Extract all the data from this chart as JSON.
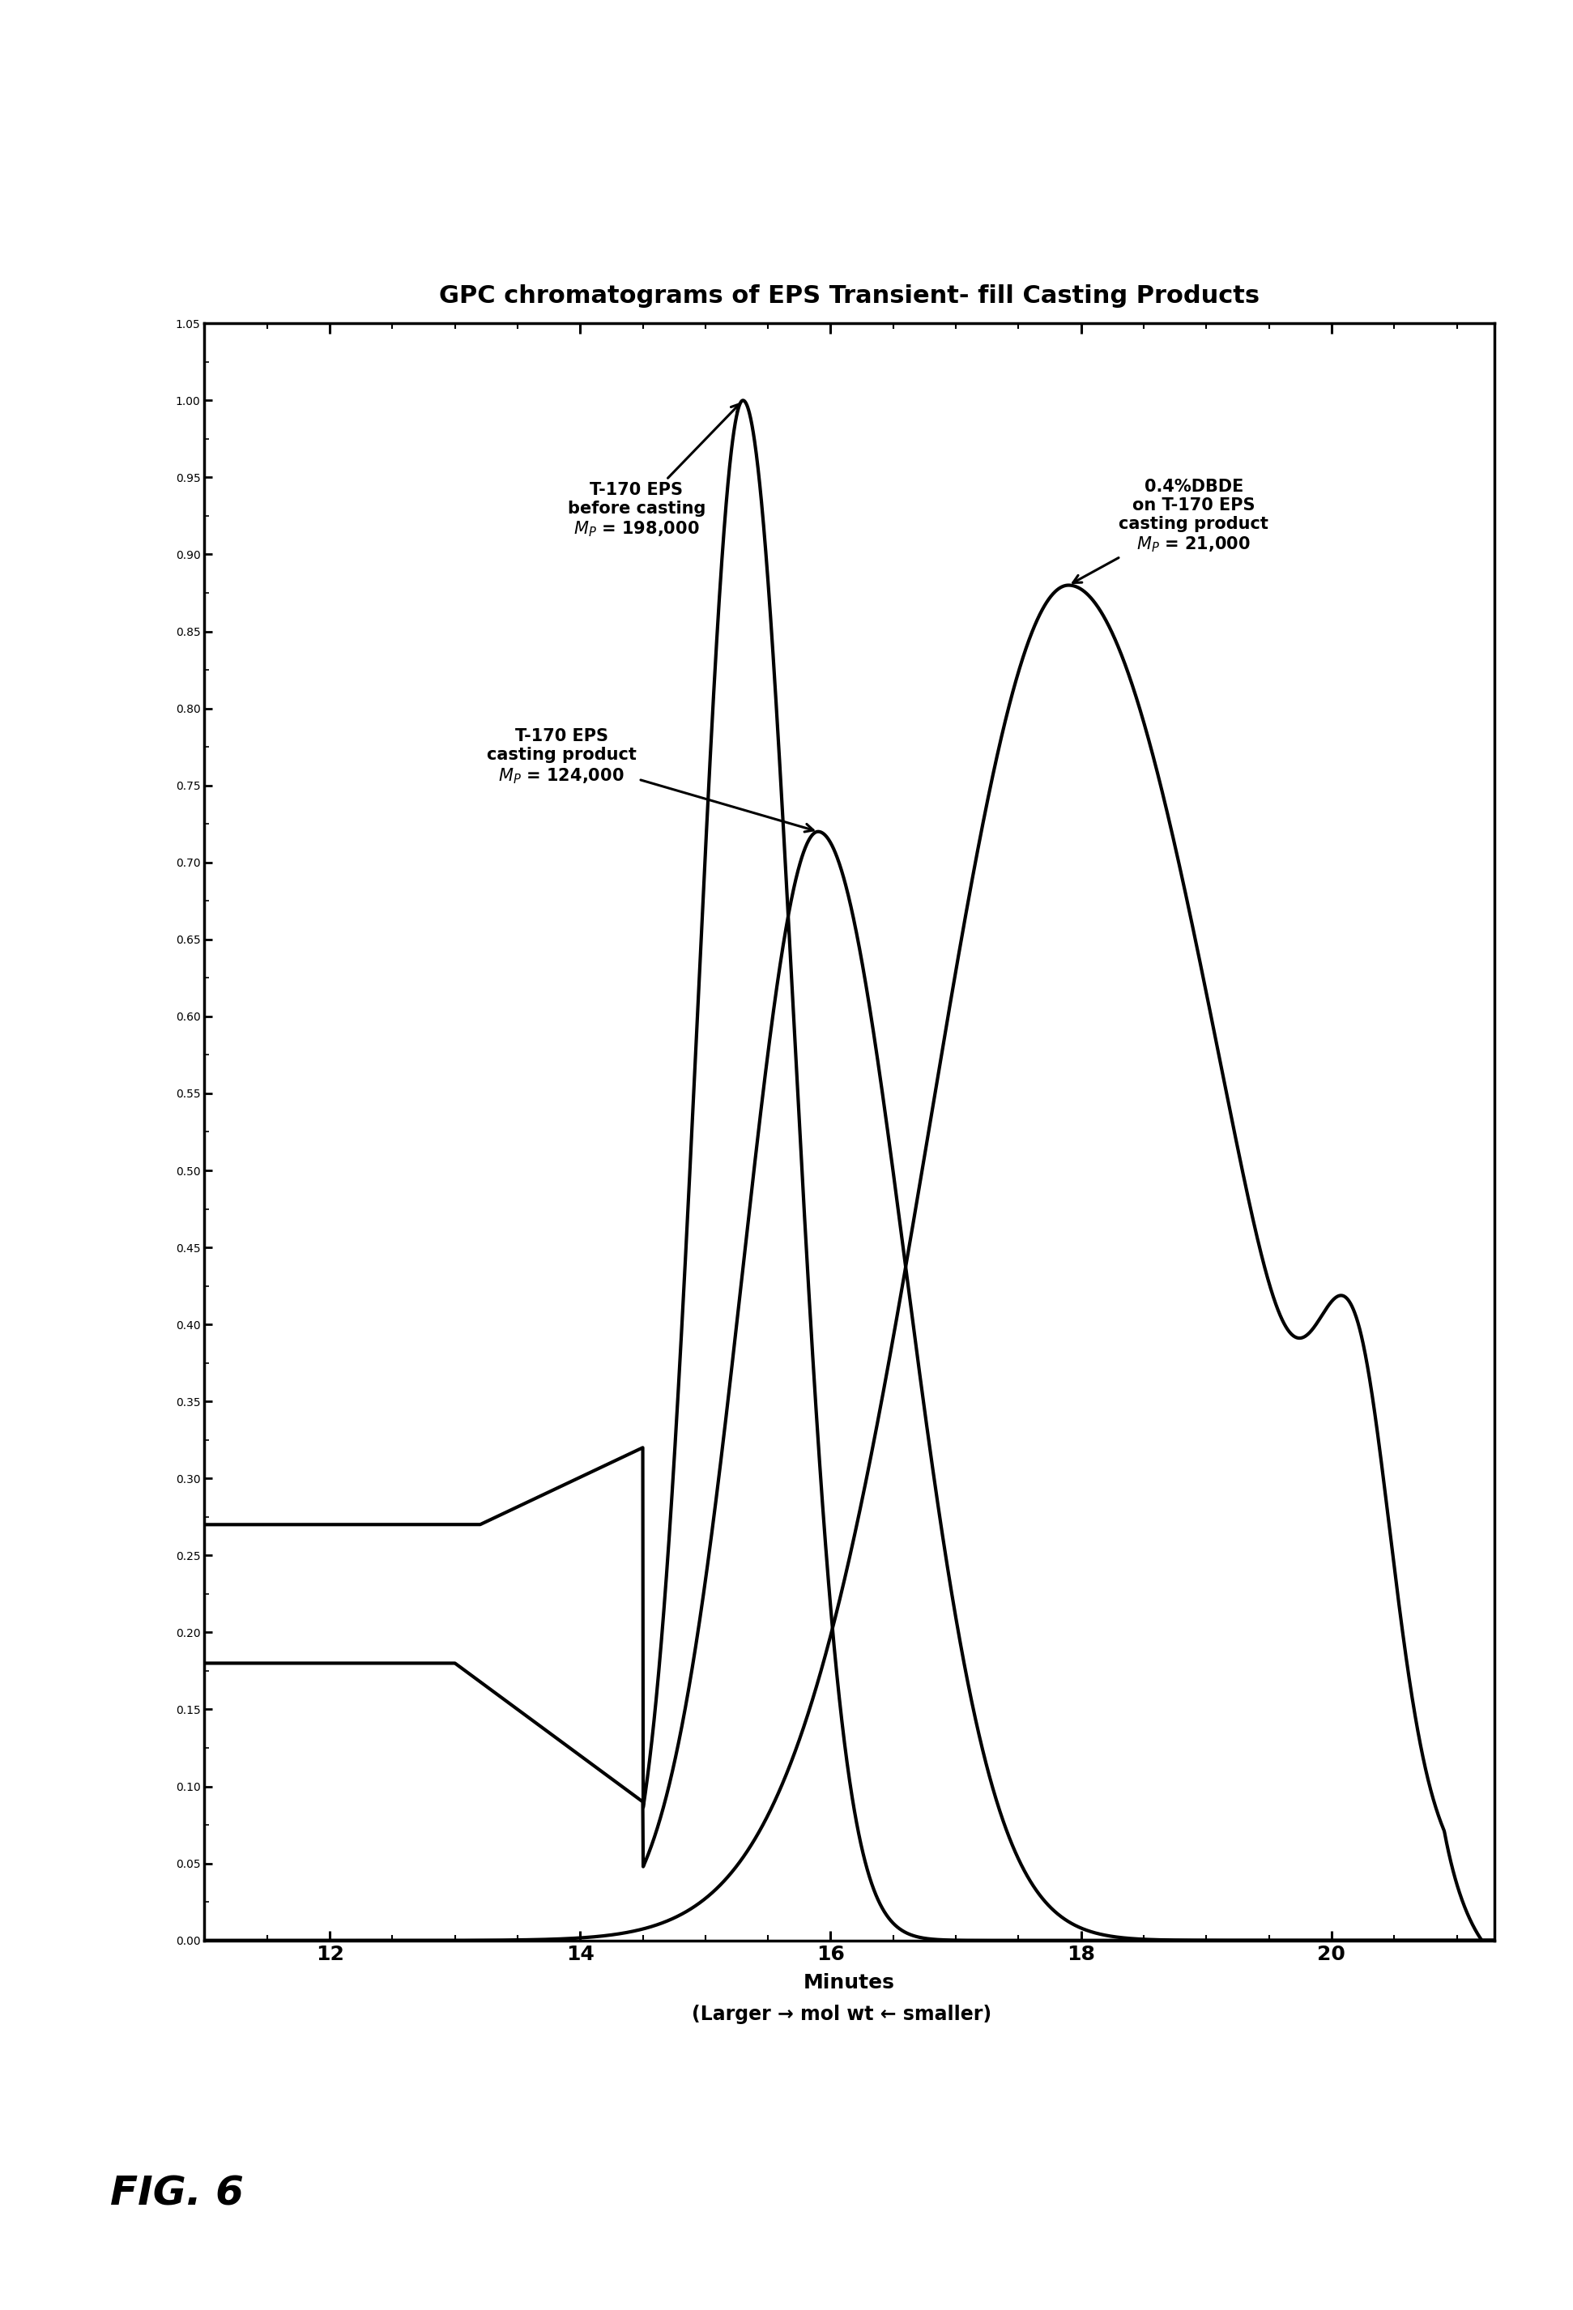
{
  "title": "GPC chromatograms of EPS Transient- fill Casting Products",
  "xlabel": "Minutes",
  "xlabel2": "(Larger → mol wt ← smaller)",
  "fig_label": "FIG. 6",
  "xmin": 11.0,
  "xmax": 21.3,
  "ymin": 0.0,
  "ymax": 1.05,
  "line_color": "#000000",
  "background_color": "#ffffff",
  "title_fontsize": 22,
  "axis_fontsize": 18,
  "tick_label_fontsize": 18,
  "annotation_fontsize": 15,
  "fig_label_fontsize": 36,
  "lw": 3.0
}
